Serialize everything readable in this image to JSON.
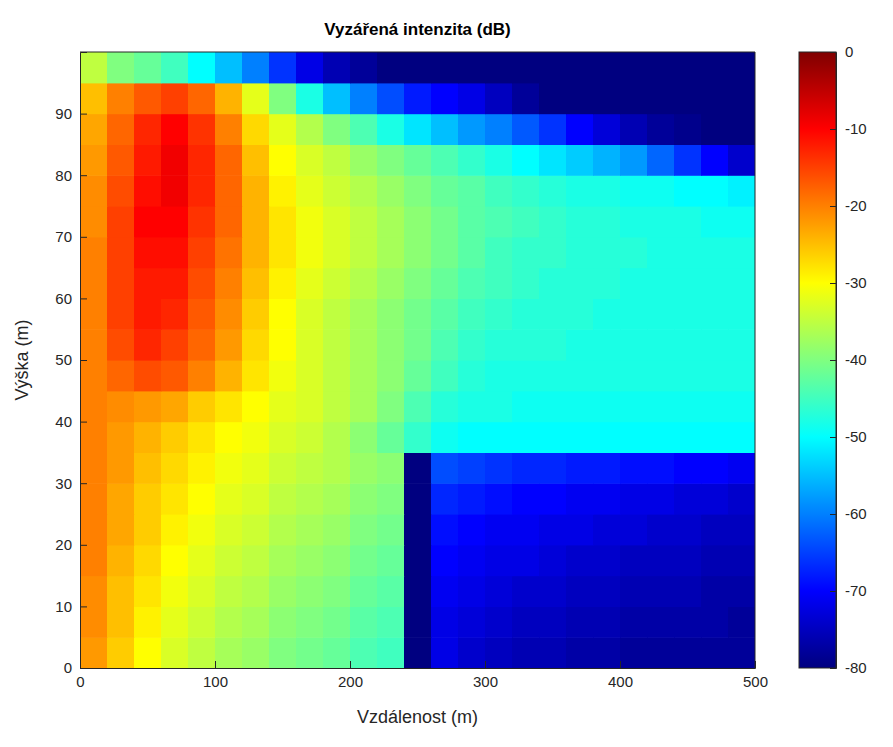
{
  "chart_data": {
    "type": "heatmap",
    "title": "Vyzářená intenzita (dB)",
    "x_label": "Vzdálenost (m)",
    "y_label": "Výška (m)",
    "xlim": [
      0,
      500
    ],
    "xticks": [
      0,
      100,
      200,
      300,
      400,
      500
    ],
    "ylim": [
      0,
      100
    ],
    "yticks": [
      0,
      10,
      20,
      30,
      40,
      50,
      60,
      70,
      80,
      90
    ],
    "colorbar_lim": [
      -80,
      0
    ],
    "colorbar_ticks": [
      -80,
      -70,
      -60,
      -50,
      -40,
      -30,
      -20,
      -10,
      0
    ],
    "x": [
      10,
      30,
      50,
      70,
      90,
      110,
      130,
      150,
      170,
      190,
      210,
      230,
      250,
      270,
      290,
      310,
      330,
      350,
      370,
      390,
      410,
      430,
      450,
      470,
      490
    ],
    "y": [
      2.5,
      7.5,
      12.5,
      17.5,
      22.5,
      27.5,
      32.5,
      37.5,
      42.5,
      47.5,
      52.5,
      57.5,
      62.5,
      67.5,
      72.5,
      77.5,
      82.5,
      87.5,
      92.5,
      97.5
    ],
    "values": [
      [
        -22,
        -26,
        -30,
        -33,
        -35,
        -37,
        -38,
        -40,
        -41,
        -42,
        -44,
        -45,
        -80,
        -72,
        -74,
        -75,
        -76,
        -76,
        -77,
        -77,
        -78,
        -78,
        -78,
        -78,
        -78
      ],
      [
        -21,
        -25,
        -29,
        -32,
        -34,
        -36,
        -37,
        -39,
        -40,
        -41,
        -43,
        -44,
        -80,
        -72,
        -73,
        -74,
        -75,
        -75,
        -76,
        -76,
        -77,
        -77,
        -77,
        -77,
        -78
      ],
      [
        -21,
        -25,
        -28,
        -31,
        -33,
        -35,
        -36,
        -38,
        -39,
        -40,
        -42,
        -43,
        -80,
        -71,
        -72,
        -73,
        -74,
        -74,
        -75,
        -75,
        -76,
        -76,
        -76,
        -77,
        -77
      ],
      [
        -20,
        -24,
        -27,
        -30,
        -32,
        -34,
        -35,
        -37,
        -38,
        -39,
        -41,
        -42,
        -80,
        -70,
        -71,
        -72,
        -72,
        -73,
        -74,
        -74,
        -75,
        -75,
        -75,
        -76,
        -76
      ],
      [
        -20,
        -23,
        -26,
        -29,
        -31,
        -33,
        -34,
        -36,
        -37,
        -38,
        -40,
        -41,
        -80,
        -69,
        -70,
        -71,
        -71,
        -72,
        -72,
        -73,
        -73,
        -74,
        -74,
        -75,
        -75
      ],
      [
        -20,
        -23,
        -26,
        -28,
        -30,
        -32,
        -33,
        -35,
        -36,
        -37,
        -39,
        -40,
        -80,
        -67,
        -68,
        -69,
        -70,
        -70,
        -71,
        -71,
        -72,
        -72,
        -73,
        -73,
        -74
      ],
      [
        -20,
        -22,
        -25,
        -27,
        -29,
        -31,
        -32,
        -34,
        -35,
        -36,
        -38,
        -39,
        -80,
        -64,
        -65,
        -66,
        -67,
        -67,
        -68,
        -68,
        -69,
        -69,
        -70,
        -70,
        -71
      ],
      [
        -20,
        -22,
        -24,
        -26,
        -28,
        -30,
        -31,
        -33,
        -34,
        -36,
        -39,
        -42,
        -46,
        -49,
        -50,
        -50,
        -50,
        -50,
        -50,
        -50,
        -50,
        -50,
        -50,
        -50,
        -50
      ],
      [
        -20,
        -21,
        -22,
        -23,
        -26,
        -28,
        -30,
        -32,
        -33,
        -35,
        -37,
        -40,
        -44,
        -47,
        -48,
        -48,
        -49,
        -49,
        -49,
        -49,
        -49,
        -49,
        -49,
        -49,
        -49
      ],
      [
        -20,
        -18,
        -16,
        -17,
        -20,
        -24,
        -28,
        -31,
        -33,
        -35,
        -37,
        -39,
        -42,
        -45,
        -47,
        -48,
        -48,
        -48,
        -48,
        -48,
        -48,
        -48,
        -48,
        -48,
        -48
      ],
      [
        -20,
        -16,
        -13,
        -15,
        -18,
        -22,
        -27,
        -30,
        -33,
        -35,
        -37,
        -39,
        -41,
        -44,
        -46,
        -47,
        -47,
        -47,
        -48,
        -48,
        -48,
        -48,
        -48,
        -48,
        -48
      ],
      [
        -20,
        -15,
        -12,
        -13,
        -17,
        -21,
        -26,
        -30,
        -33,
        -35,
        -37,
        -39,
        -41,
        -43,
        -45,
        -46,
        -47,
        -47,
        -47,
        -48,
        -48,
        -48,
        -48,
        -48,
        -48
      ],
      [
        -20,
        -15,
        -12,
        -12,
        -16,
        -20,
        -25,
        -29,
        -32,
        -34,
        -36,
        -38,
        -40,
        -42,
        -44,
        -45,
        -46,
        -47,
        -47,
        -47,
        -48,
        -48,
        -48,
        -48,
        -48
      ],
      [
        -20,
        -15,
        -11,
        -11,
        -15,
        -19,
        -24,
        -28,
        -31,
        -33,
        -35,
        -37,
        -39,
        -41,
        -43,
        -45,
        -46,
        -46,
        -47,
        -47,
        -47,
        -48,
        -48,
        -48,
        -48
      ],
      [
        -21,
        -15,
        -10,
        -10,
        -14,
        -18,
        -24,
        -28,
        -31,
        -33,
        -35,
        -37,
        -39,
        -41,
        -43,
        -44,
        -45,
        -46,
        -47,
        -47,
        -48,
        -48,
        -48,
        -49,
        -49
      ],
      [
        -21,
        -16,
        -11,
        -9,
        -13,
        -18,
        -24,
        -29,
        -32,
        -34,
        -36,
        -38,
        -40,
        -42,
        -43,
        -45,
        -46,
        -47,
        -48,
        -48,
        -49,
        -49,
        -50,
        -50,
        -51
      ],
      [
        -22,
        -17,
        -12,
        -9,
        -13,
        -18,
        -25,
        -30,
        -33,
        -35,
        -38,
        -40,
        -42,
        -44,
        -46,
        -48,
        -50,
        -52,
        -54,
        -56,
        -58,
        -62,
        -66,
        -70,
        -74
      ],
      [
        -23,
        -18,
        -13,
        -10,
        -14,
        -20,
        -27,
        -32,
        -36,
        -40,
        -44,
        -48,
        -52,
        -55,
        -58,
        -60,
        -63,
        -66,
        -70,
        -73,
        -76,
        -78,
        -79,
        -80,
        -80
      ],
      [
        -25,
        -20,
        -17,
        -15,
        -18,
        -24,
        -32,
        -40,
        -48,
        -55,
        -60,
        -64,
        -68,
        -70,
        -72,
        -75,
        -78,
        -80,
        -80,
        -80,
        -80,
        -80,
        -80,
        -80,
        -80
      ],
      [
        -35,
        -40,
        -42,
        -45,
        -50,
        -55,
        -60,
        -66,
        -72,
        -76,
        -78,
        -80,
        -80,
        -80,
        -80,
        -80,
        -80,
        -80,
        -80,
        -80,
        -80,
        -80,
        -80,
        -80,
        -80
      ]
    ]
  }
}
